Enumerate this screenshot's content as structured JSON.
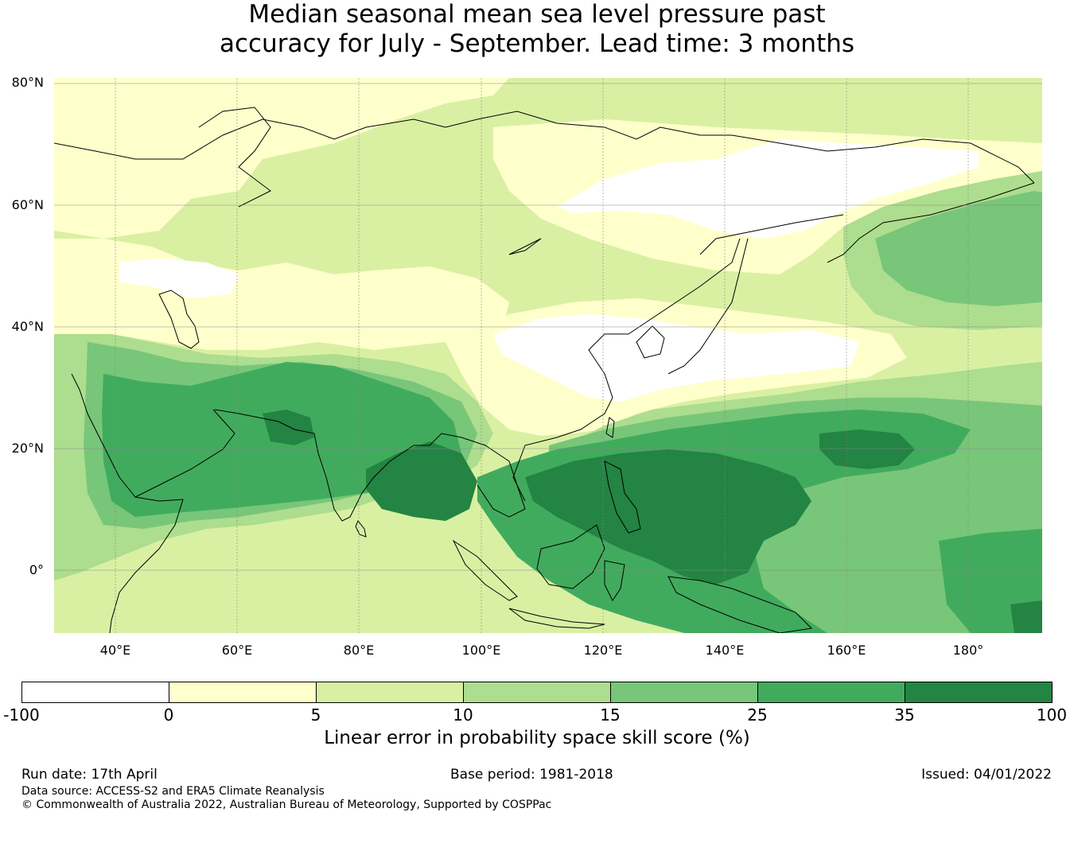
{
  "title": {
    "line1": "Median seasonal mean sea level pressure past",
    "line2": "accuracy for July - September. Lead time: 3 months"
  },
  "map": {
    "lat_labels": [
      "80°N",
      "60°N",
      "40°N",
      "20°N",
      "0°"
    ],
    "lon_labels": [
      "40°E",
      "60°E",
      "80°E",
      "100°E",
      "120°E",
      "140°E",
      "160°E",
      "180°"
    ],
    "colors": {
      "c_neg": "#ffffff",
      "c0": "#ffffcc",
      "c5": "#d9f0a3",
      "c10": "#addd8e",
      "c15": "#78c679",
      "c25": "#41ab5d",
      "c35": "#238443"
    }
  },
  "colorbar": {
    "ticks": [
      "-100",
      "0",
      "5",
      "10",
      "15",
      "25",
      "35",
      "100"
    ],
    "segment_colors": [
      "#ffffff",
      "#ffffcc",
      "#d9f0a3",
      "#addd8e",
      "#78c679",
      "#41ab5d",
      "#238443"
    ],
    "label": "Linear error in probability space skill score (%)"
  },
  "footer": {
    "run_date": "Run date: 17th April",
    "base_period": "Base period: 1981-2018",
    "issued": "Issued: 04/01/2022",
    "data_source": "Data source: ACCESS-S2 and ERA5 Climate Reanalysis",
    "copyright": "© Commonwealth of Australia 2022, Australian Bureau of Meteorology, Supported by COSPPac"
  }
}
